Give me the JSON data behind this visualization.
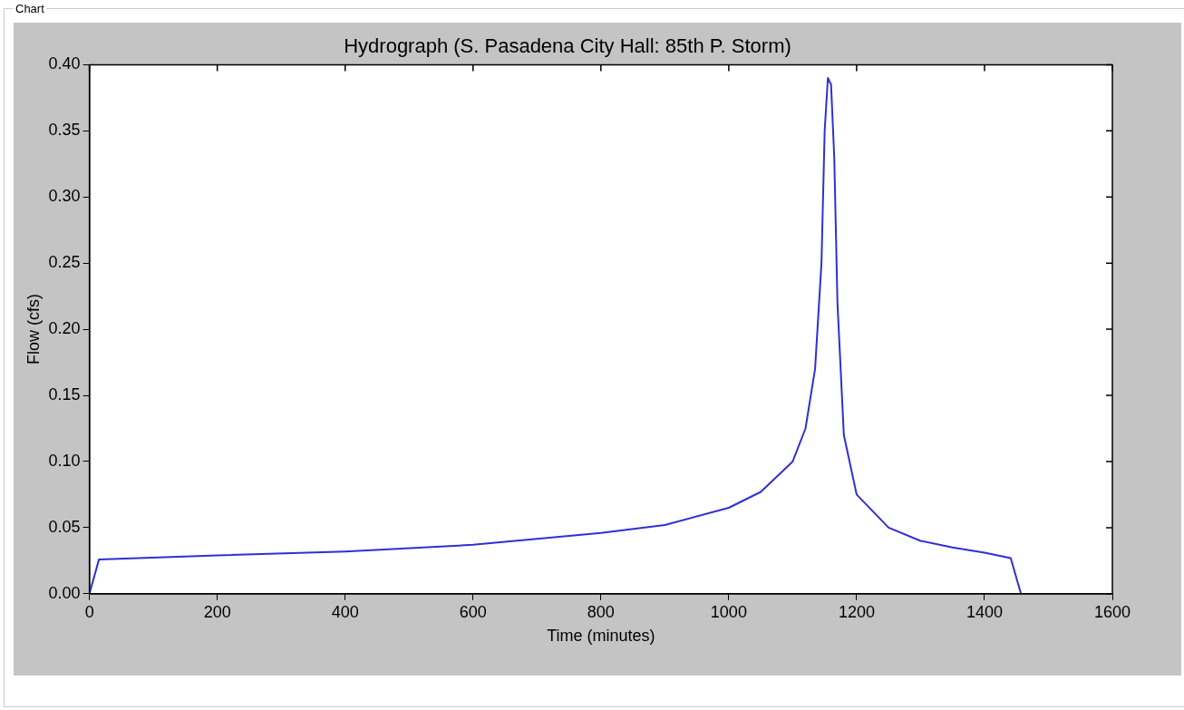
{
  "chart_data": {
    "type": "line",
    "title": "Hydrograph (S. Pasadena City Hall: 85th P. Storm)",
    "xlabel": "Time (minutes)",
    "ylabel": "Flow (cfs)",
    "annotations": [
      "Chart"
    ],
    "series": [
      {
        "color": "#3030d0",
        "x": [
          0,
          15,
          200,
          400,
          600,
          800,
          900,
          1000,
          1050,
          1100,
          1120,
          1135,
          1145,
          1150,
          1155,
          1160,
          1165,
          1170,
          1180,
          1200,
          1250,
          1300,
          1350,
          1400,
          1441,
          1457
        ],
        "values": [
          0,
          0.026,
          0.029,
          0.032,
          0.037,
          0.046,
          0.052,
          0.065,
          0.077,
          0.1,
          0.125,
          0.17,
          0.25,
          0.35,
          0.39,
          0.385,
          0.33,
          0.22,
          0.12,
          0.075,
          0.05,
          0.04,
          0.035,
          0.031,
          0.027,
          0
        ]
      }
    ],
    "xlim": [
      0,
      1600
    ],
    "xticks": [
      0,
      200,
      400,
      600,
      800,
      1000,
      1200,
      1400,
      1600
    ],
    "ylim": [
      0,
      0.4
    ],
    "yticks": [
      {
        "value": 0,
        "label": "0.00"
      },
      {
        "value": 0.05,
        "label": "0.05"
      },
      {
        "value": 0.1,
        "label": "0.10"
      },
      {
        "value": 0.15,
        "label": "0.15"
      },
      {
        "value": 0.2,
        "label": "0.20"
      },
      {
        "value": 0.25,
        "label": "0.25"
      },
      {
        "value": 0.3,
        "label": "0.30"
      },
      {
        "value": 0.35,
        "label": "0.35"
      },
      {
        "value": 0.4,
        "label": "0.40"
      }
    ],
    "grid": false,
    "legend": false,
    "marker": "none",
    "line_style": "solid"
  }
}
